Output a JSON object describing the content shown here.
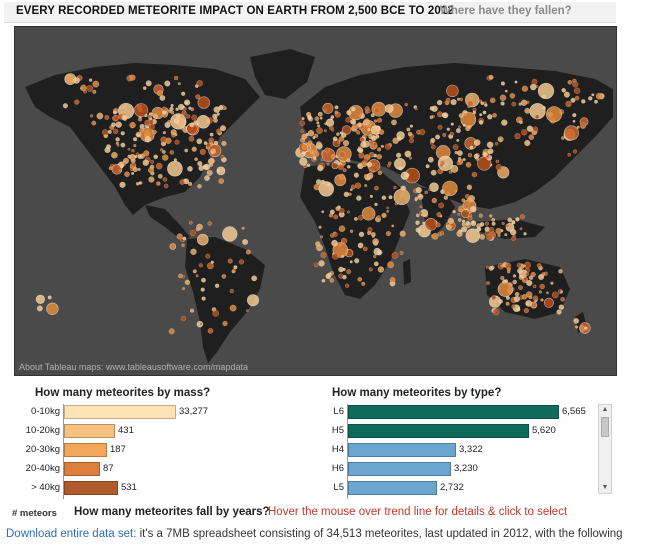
{
  "header": {
    "title": "EVERY RECORDED METEORITE IMPACT ON EARTH FROM 2,500 BCE TO 2012",
    "subtitle": "Where have they fallen?"
  },
  "map": {
    "credit": "About Tableau maps: www.tableausoftware.com/mapdata",
    "colors": {
      "ocean": "#4a4a4a",
      "land": "#1f1f1f",
      "dot_light": "#f3c98f",
      "dot_mid": "#e08a3c",
      "dot_dark": "#b8501a"
    }
  },
  "mass_chart": {
    "title": "How many meteorites by mass?",
    "axis_label": "# meteors",
    "rows": [
      {
        "label": "0-10kg",
        "value": "33,277",
        "fraction": 0.98,
        "color": "#fde3b5"
      },
      {
        "label": "10-20kg",
        "value": "431",
        "fraction": 0.45,
        "color": "#f7c27f"
      },
      {
        "label": "20-30kg",
        "value": "187",
        "fraction": 0.38,
        "color": "#f1a65a"
      },
      {
        "label": "20-40kg",
        "value": "87",
        "fraction": 0.32,
        "color": "#dd7e3c"
      },
      {
        "label": "> 40kg",
        "value": "531",
        "fraction": 0.47,
        "color": "#b05a2a"
      }
    ]
  },
  "type_chart": {
    "title": "How many meteorites by type?",
    "rows": [
      {
        "label": "L6",
        "value": "6,565",
        "fraction": 1.0,
        "color": "#0e6b5c"
      },
      {
        "label": "H5",
        "value": "5,620",
        "fraction": 0.86,
        "color": "#0e6b5c"
      },
      {
        "label": "H4",
        "value": "3,322",
        "fraction": 0.51,
        "color": "#6aa6cf"
      },
      {
        "label": "H6",
        "value": "3,230",
        "fraction": 0.49,
        "color": "#6aa6cf"
      },
      {
        "label": "L5",
        "value": "2,732",
        "fraction": 0.42,
        "color": "#6aa6cf"
      }
    ]
  },
  "years_section": {
    "title": "How many meteorites fall by years?",
    "hint": "Hover the mouse over trend line for details & click to select"
  },
  "footer": {
    "link_text": "Download entire data set:",
    "description": " it's a 7MB spreadsheet consisting of 34,513 meteorites, last updated in 2012, with the following"
  }
}
